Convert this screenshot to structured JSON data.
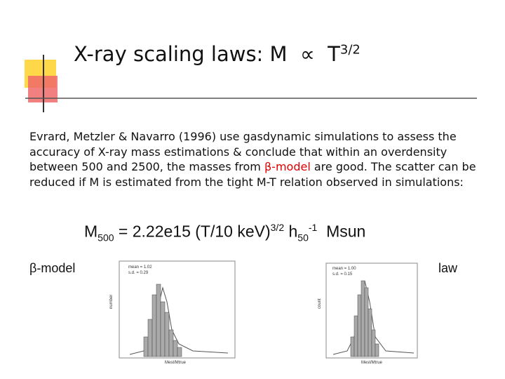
{
  "header": {
    "title": "X-ray scaling laws: M",
    "symbol": "∝",
    "base": "T",
    "exponent": "3/2"
  },
  "body": {
    "text_before": "Evrard, Metzler & Navarro (1996) use gasdynamic simulations to assess the accuracy of X-ray mass estimations & conclude that within an overdensity between 500 and 2500, the masses from ",
    "highlight": "β-model",
    "text_after": " are good. The scatter can be reduced if M is estimated from the tight M-T relation observed in simulations:"
  },
  "equation": {
    "m": "M",
    "m_sub": "500",
    "middle": " = 2.22e15 (T/10 keV)",
    "t_sup": "3/2",
    "h": " h",
    "h_sub": "50",
    "h_sup": "-1",
    "unit": "Msun"
  },
  "labels": {
    "left": "β-model",
    "right": "law"
  },
  "figures": [
    {
      "legend": [
        "mean = 1.02",
        "s.d. = 0.29"
      ],
      "ylabel": "number",
      "xlabel": "Mest/Mtrue"
    },
    {
      "legend": [
        "mean = 1.00",
        "s.d. = 0.15"
      ],
      "ylabel": "count",
      "xlabel": "Mest/Mtrue"
    }
  ]
}
